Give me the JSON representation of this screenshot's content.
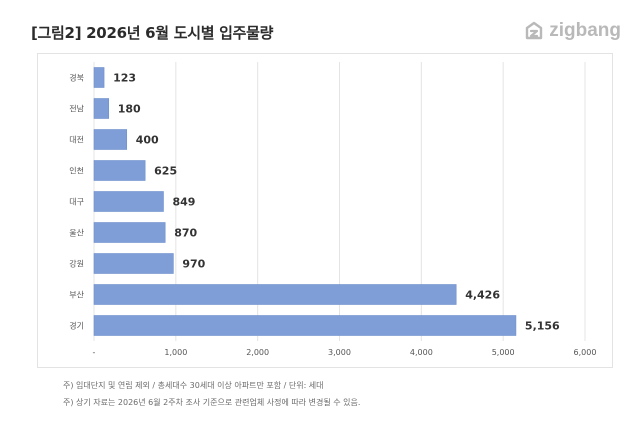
{
  "header": {
    "title": "[그림2] 2026년 6월 도시별 입주물량",
    "logo_text": "zigbang",
    "logo_icon": "zigbang-logo-icon"
  },
  "colors": {
    "bar": "#7f9ed8",
    "bar_stroke": "#6f8fcc",
    "grid": "#e4e4e4",
    "axis_text": "#555555",
    "value_text": "#333333"
  },
  "chart_data": {
    "type": "bar",
    "orientation": "horizontal",
    "title": "[그림2] 2026년 6월 도시별 입주물량",
    "xlabel": "",
    "ylabel": "",
    "categories": [
      "경북",
      "전남",
      "대전",
      "인천",
      "대구",
      "울산",
      "강원",
      "부산",
      "경기"
    ],
    "values": [
      123,
      180,
      400,
      625,
      849,
      870,
      970,
      4426,
      5156
    ],
    "value_labels": [
      "123",
      "180",
      "400",
      "625",
      "849",
      "870",
      "970",
      "4,426",
      "5,156"
    ],
    "xlim": [
      0,
      6000
    ],
    "x_ticks": [
      0,
      1000,
      2000,
      3000,
      4000,
      5000,
      6000
    ],
    "x_tick_labels": [
      "-",
      "1,000",
      "2,000",
      "3,000",
      "4,000",
      "5,000",
      "6,000"
    ],
    "grid": true,
    "legend": "none"
  },
  "footnotes": [
    "주) 임대단지 및 연립 제외 / 총세대수 30세대 이상 아파트만 포함 / 단위: 세대",
    "주) 상기 자료는 2026년 6월 2주차 조사 기준으로 관련업체 사정에 따라 변경될 수 있음."
  ]
}
